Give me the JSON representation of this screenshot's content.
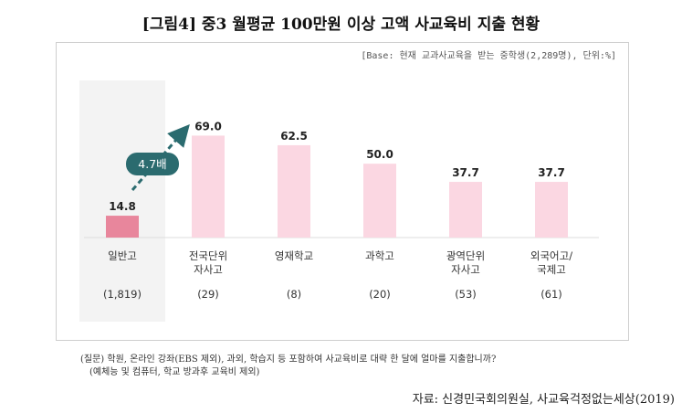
{
  "title": "[그림4] 중3 월평균 100만원 이상 고액 사교육비 지출 현황",
  "base_note": "[Base: 현재 교과사교육을 받는 중학생(2,289명), 단위:%]",
  "annotation": "4.7배",
  "footnote_line1": "(질문) 학원, 온라인 강좌(EBS 제외), 과외, 학습지 등 포함하여 사교육비로 대략 한 달에 얼마를 지출합니까?",
  "footnote_line2": "(예체능 및 컴퓨터, 학교 방과후 교육비 제외)",
  "source": "자료: 신경민국회의원실, 사교육걱정없는세상(2019)",
  "chart_data": {
    "type": "bar",
    "categories": [
      [
        "일반고"
      ],
      [
        "전국단위",
        "자사고"
      ],
      [
        "영재학교"
      ],
      [
        "과학고"
      ],
      [
        "광역단위",
        "자사고"
      ],
      [
        "외국어고/",
        "국제고"
      ]
    ],
    "counts": [
      "(1,819)",
      "(29)",
      "(8)",
      "(20)",
      "(53)",
      "(61)"
    ],
    "values": [
      14.8,
      69.0,
      62.5,
      50.0,
      37.7,
      37.7
    ],
    "value_labels": [
      "14.8",
      "69.0",
      "62.5",
      "50.0",
      "37.7",
      "37.7"
    ],
    "ylim": [
      0,
      80
    ],
    "highlight_index": 0,
    "colors": {
      "highlight": "#e8869c",
      "bar": "#fbd7e2",
      "highlight_bg": "#f3f3f3",
      "arrow": "#2b6b6f"
    }
  }
}
